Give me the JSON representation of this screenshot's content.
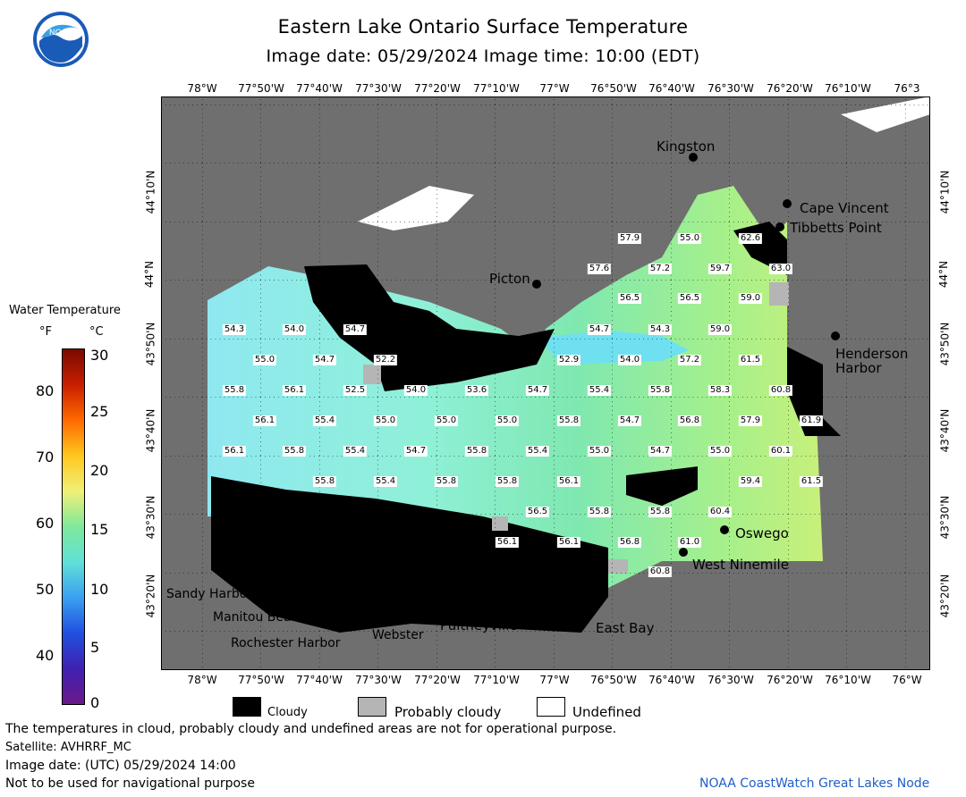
{
  "header": {
    "title": "Eastern Lake Ontario Surface Temperature",
    "subtitle": "Image date: 05/29/2024     Image time: 10:00 (EDT)",
    "logo_text": "NOAA"
  },
  "axes": {
    "lon_top": [
      "78°W",
      "77°50'W",
      "77°40'W",
      "77°30'W",
      "77°20'W",
      "77°10'W",
      "77°W",
      "76°50'W",
      "76°40'W",
      "76°30'W",
      "76°20'W",
      "76°10'W",
      "76°3"
    ],
    "lon_bottom": [
      "78°W",
      "77°50'W",
      "77°40'W",
      "77°30'W",
      "77°20'W",
      "77°10'W",
      "77°W",
      "76°50'W",
      "76°40'W",
      "76°30'W",
      "76°20'W",
      "76°10'W",
      "76°W"
    ],
    "lat_left": [
      "44°10'N",
      "44°N",
      "43°50'N",
      "43°40'N",
      "43°30'N",
      "43°20'N"
    ],
    "lat_right": [
      "44°10'N",
      "44°N",
      "43°50'N",
      "43°40'N",
      "43°30'N",
      "43°20'N"
    ]
  },
  "legend": {
    "title": "Water Temperature",
    "unit_f": "°F",
    "unit_c": "°C",
    "f_ticks": [
      "80",
      "70",
      "60",
      "50",
      "40"
    ],
    "c_ticks": [
      "30",
      "25",
      "20",
      "15",
      "10",
      "5",
      "0"
    ]
  },
  "places": [
    {
      "name": "Kingston"
    },
    {
      "name": "Cape Vincent"
    },
    {
      "name": "Tibbetts Point"
    },
    {
      "name": "Picton"
    },
    {
      "name": "Henderson"
    },
    {
      "name": "Harbor"
    },
    {
      "name": "Oswego"
    },
    {
      "name": "West Ninemile"
    },
    {
      "name": "Sandy Harbour"
    },
    {
      "name": "Manitou Beach"
    },
    {
      "name": "Rochester Harbor"
    },
    {
      "name": "Webster"
    },
    {
      "name": "Pultneyville"
    },
    {
      "name": "East Bay"
    }
  ],
  "temperatures": [
    "57.9",
    "55.0",
    "62.6",
    "57.6",
    "57.2",
    "59.7",
    "63.0",
    "56.5",
    "56.5",
    "59.0",
    "54.3",
    "54.0",
    "54.7",
    "54.7",
    "54.3",
    "59.0",
    "55.0",
    "54.7",
    "52.2",
    "52.9",
    "54.0",
    "57.2",
    "61.5",
    "55.8",
    "56.1",
    "52.5",
    "54.0",
    "53.6",
    "54.7",
    "55.4",
    "55.8",
    "58.3",
    "60.8",
    "56.1",
    "55.4",
    "55.0",
    "55.0",
    "55.0",
    "55.8",
    "54.7",
    "56.8",
    "57.9",
    "61.9",
    "56.1",
    "55.8",
    "55.4",
    "54.7",
    "55.8",
    "55.4",
    "55.0",
    "54.7",
    "55.0",
    "60.1",
    "55.8",
    "55.4",
    "55.8",
    "55.8",
    "56.1",
    "59.4",
    "61.5",
    "56.5",
    "55.8",
    "55.8",
    "60.4",
    "56.1",
    "56.1",
    "56.8",
    "61.0",
    "60.8"
  ],
  "key": {
    "cloudy": "Cloudy",
    "probably_cloudy": "Probably cloudy",
    "undefined": "Undefined"
  },
  "footer": {
    "disclaimer": "The temperatures in cloud, probably cloudy and undefined areas are not for operational purpose.",
    "satellite": "Satellite: AVHRRF_MC",
    "image_date_utc": "Image date: (UTC) 05/29/2024  14:00",
    "navigation": "Not to be used for navigational purpose",
    "credit": "NOAA CoastWatch Great Lakes Node"
  },
  "colors": {
    "land": "#6f6f6f",
    "cloud": "#000000",
    "probably_cloudy": "#b5b5b5",
    "undefined": "#ffffff",
    "water_cool": "#8fe8f0",
    "water_mid": "#7fe8b0",
    "water_warm": "#c8f07a",
    "credit": "#1f5fc8"
  }
}
